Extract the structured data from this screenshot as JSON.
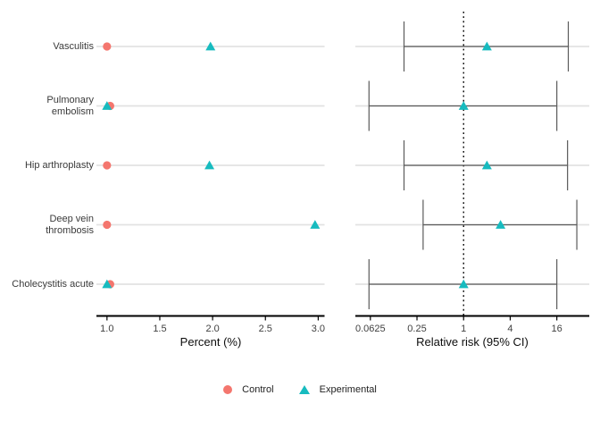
{
  "figure": {
    "background": "#ffffff",
    "categories": [
      "Vasculitis",
      "Pulmonary embolism",
      "Hip arthroplasty",
      "Deep vein thrombosis",
      "Cholecystitis acute"
    ],
    "colors": {
      "control": "#F4766E",
      "experimental": "#17BBBF",
      "gridline": "#E2E2E2",
      "errorbar": "#5A5A5A",
      "axis": "#000000",
      "reference_line": "#000000",
      "tick_text": "#404040"
    },
    "legend": {
      "items": [
        {
          "label": "Control",
          "marker": "circle",
          "color": "#F4766E"
        },
        {
          "label": "Experimental",
          "marker": "triangle",
          "color": "#17BBBF"
        }
      ]
    }
  },
  "chart_data": [
    {
      "type": "scatter",
      "panel": "percent",
      "title": "",
      "xlabel": "Percent (%)",
      "ylabel": "",
      "x_scale": "linear",
      "xlim": [
        0.9,
        3.06
      ],
      "x_tick_values": [
        1.0,
        1.5,
        2.0,
        2.5,
        3.0
      ],
      "x_tick_labels": [
        "1.0",
        "1.5",
        "2.0",
        "2.5",
        "3.0"
      ],
      "grid": "one light horizontal line per category",
      "categories": [
        "Vasculitis",
        "Pulmonary embolism",
        "Hip arthroplasty",
        "Deep vein thrombosis",
        "Cholecystitis acute"
      ],
      "series": [
        {
          "name": "Control",
          "marker": "circle",
          "color": "#F4766E",
          "values": [
            1.0,
            1.03,
            1.0,
            1.0,
            1.03
          ]
        },
        {
          "name": "Experimental",
          "marker": "triangle",
          "color": "#17BBBF",
          "values": [
            1.98,
            1.0,
            1.97,
            2.97,
            1.0
          ]
        }
      ]
    },
    {
      "type": "scatter",
      "panel": "relative-risk",
      "title": "",
      "xlabel": "Relative risk (95% CI)",
      "ylabel": "",
      "x_scale": "log2",
      "xlim": [
        0.04,
        42
      ],
      "x_tick_values": [
        0.0625,
        0.25,
        1,
        4,
        16
      ],
      "x_tick_labels": [
        "0.0625",
        "0.25",
        "1",
        "4",
        "16"
      ],
      "reference_line_x": 1,
      "grid": "one light horizontal line per category",
      "categories": [
        "Vasculitis",
        "Pulmonary embolism",
        "Hip arthroplasty",
        "Deep vein thrombosis",
        "Cholecystitis acute"
      ],
      "series": [
        {
          "name": "Experimental",
          "marker": "triangle",
          "color": "#17BBBF",
          "rr": [
            2.0,
            1.0,
            2.0,
            3.0,
            1.0
          ],
          "ci_low": [
            0.17,
            0.06,
            0.17,
            0.3,
            0.06
          ],
          "ci_high": [
            22.5,
            16,
            22,
            29,
            16
          ]
        }
      ]
    }
  ]
}
